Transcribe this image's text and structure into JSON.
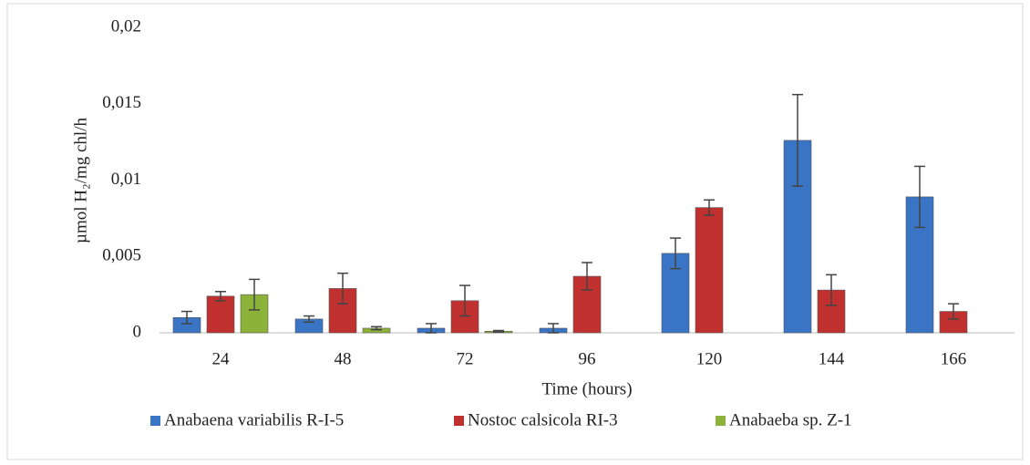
{
  "chart_data": {
    "type": "bar",
    "y_label": "µmol H₂/mg chl/h",
    "x_label": "Time (hours)",
    "categories": [
      "24",
      "48",
      "72",
      "96",
      "120",
      "144",
      "166"
    ],
    "series": [
      {
        "name": "Anabaena variabilis R-I-5",
        "color": "#3a74c4",
        "values": [
          0.001,
          0.0009,
          0.0003,
          0.0003,
          0.0052,
          0.0126,
          0.0089
        ],
        "errors": [
          0.0004,
          0.0002,
          0.0003,
          0.0003,
          0.001,
          0.003,
          0.002
        ]
      },
      {
        "name": "Nostoc calsicola RI-3",
        "color": "#c0302f",
        "values": [
          0.0024,
          0.0029,
          0.0021,
          0.0037,
          0.0082,
          0.0028,
          0.0014
        ],
        "errors": [
          0.0003,
          0.001,
          0.001,
          0.0009,
          0.0005,
          0.001,
          0.0005
        ]
      },
      {
        "name": "Anabaeba sp. Z-1",
        "color": "#8db23a",
        "values": [
          0.0025,
          0.0003,
          0.0001,
          null,
          null,
          null,
          null
        ],
        "errors": [
          0.001,
          0.0001,
          5e-05,
          null,
          null,
          null,
          null
        ]
      }
    ],
    "ylim": [
      0,
      0.02
    ],
    "yticks": [
      0,
      {
        "value": 0.005,
        "label": "0,005"
      },
      {
        "value": 0.01,
        "label": "0,01"
      },
      {
        "value": 0.015,
        "label": "0,015"
      },
      {
        "value": 0.02,
        "label": "0,02"
      }
    ],
    "grid": false,
    "legend": "bottom"
  }
}
